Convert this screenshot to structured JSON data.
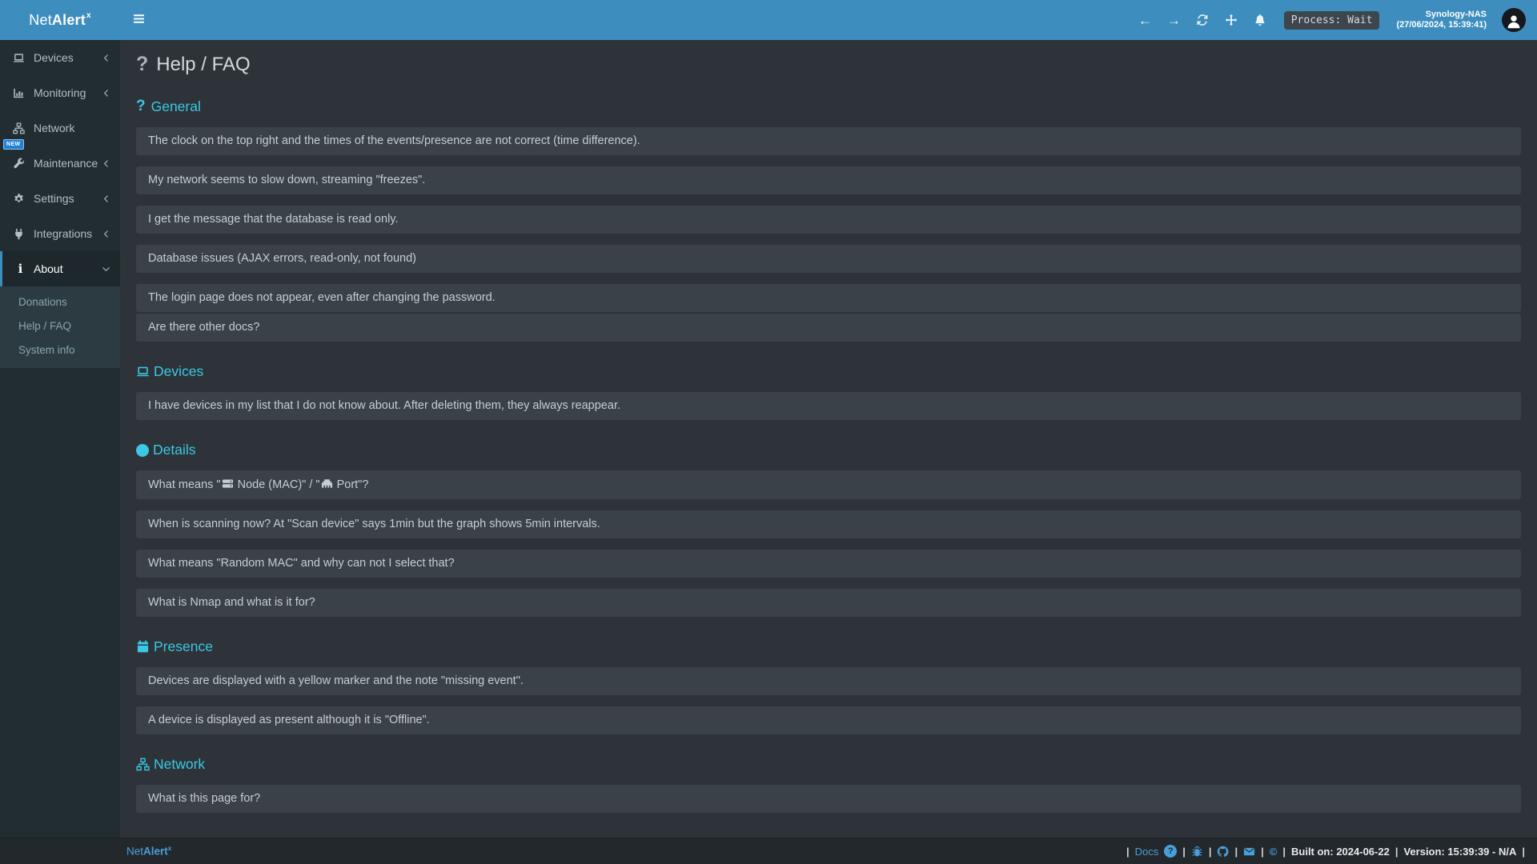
{
  "app": {
    "brand_net": "Net",
    "brand_alert": "Alert",
    "brand_sup": "x"
  },
  "topbar": {
    "process_label": "Process: Wait",
    "host_name": "Synology-NAS",
    "host_time": "(27/06/2024, 15:39:41)",
    "icons": [
      "hamburger",
      "arrow-left",
      "arrow-right",
      "sync",
      "move",
      "bell",
      "user-avatar"
    ]
  },
  "sidebar": {
    "items": [
      {
        "label": "Devices",
        "icon": "laptop",
        "chevron": "left"
      },
      {
        "label": "Monitoring",
        "icon": "chart",
        "chevron": "left"
      },
      {
        "label": "Network",
        "icon": "sitemap",
        "chevron": null
      },
      {
        "label": "Maintenance",
        "icon": "wrench",
        "chevron": "left",
        "badge": "NEW"
      },
      {
        "label": "Settings",
        "icon": "gear",
        "chevron": "left"
      },
      {
        "label": "Integrations",
        "icon": "plug",
        "chevron": "left"
      },
      {
        "label": "About",
        "icon": "info",
        "chevron": "down",
        "active": true,
        "children": [
          "Donations",
          "Help / FAQ",
          "System info"
        ]
      }
    ]
  },
  "page": {
    "title": "Help / FAQ",
    "title_icon": "question"
  },
  "sections": [
    {
      "title": "General",
      "icon": "question",
      "items": [
        "The clock on the top right and the times of the events/presence are not correct (time difference).",
        "My network seems to slow down, streaming \"freezes\".",
        "I get the message that the database is read only.",
        "Database issues (AJAX errors, read-only, not found)",
        "The login page does not appear, even after changing the password.",
        "Are there other docs?"
      ]
    },
    {
      "title": "Devices",
      "icon": "laptop",
      "items": [
        "I have devices in my list that I do not know about. After deleting them, they always reappear."
      ]
    },
    {
      "title": "Details",
      "icon": "info-circle",
      "items": [
        {
          "parts": [
            {
              "text": "What means \""
            },
            {
              "icon": "server"
            },
            {
              "text": " Node (MAC)\" / \""
            },
            {
              "icon": "ethernet"
            },
            {
              "text": " Port\"?"
            }
          ]
        },
        "When is scanning now? At \"Scan device\" says 1min but the graph shows 5min intervals.",
        "What means \"Random MAC\" and why can not I select that?",
        "What is Nmap and what is it for?"
      ]
    },
    {
      "title": "Presence",
      "icon": "calendar",
      "items": [
        "Devices are displayed with a yellow marker and the note \"missing event\".",
        "A device is displayed as present although it is \"Offline\"."
      ]
    },
    {
      "title": "Network",
      "icon": "sitemap",
      "items": [
        "What is this page for?"
      ]
    }
  ],
  "footer": {
    "separator": "|",
    "docs_label": "Docs",
    "copyright": "©",
    "built": "Built on: 2024-06-22",
    "version": "Version: 15:39:39 - N/A",
    "icons": [
      "question-circle",
      "bug",
      "github",
      "envelope"
    ]
  },
  "colors": {
    "topbar_blue": "#3d8ebf",
    "accent_blue": "#3c8dbc",
    "sidebar_bg": "#222d32",
    "sidebar_active_bg": "#1e282c",
    "submenu_bg": "#2c3b41",
    "content_bg": "#2d3338",
    "panel_bg": "#3a4147",
    "section_cyan": "#3bc8e4",
    "footer_bg": "#23282d",
    "new_badge_blue": "#2380d8"
  }
}
